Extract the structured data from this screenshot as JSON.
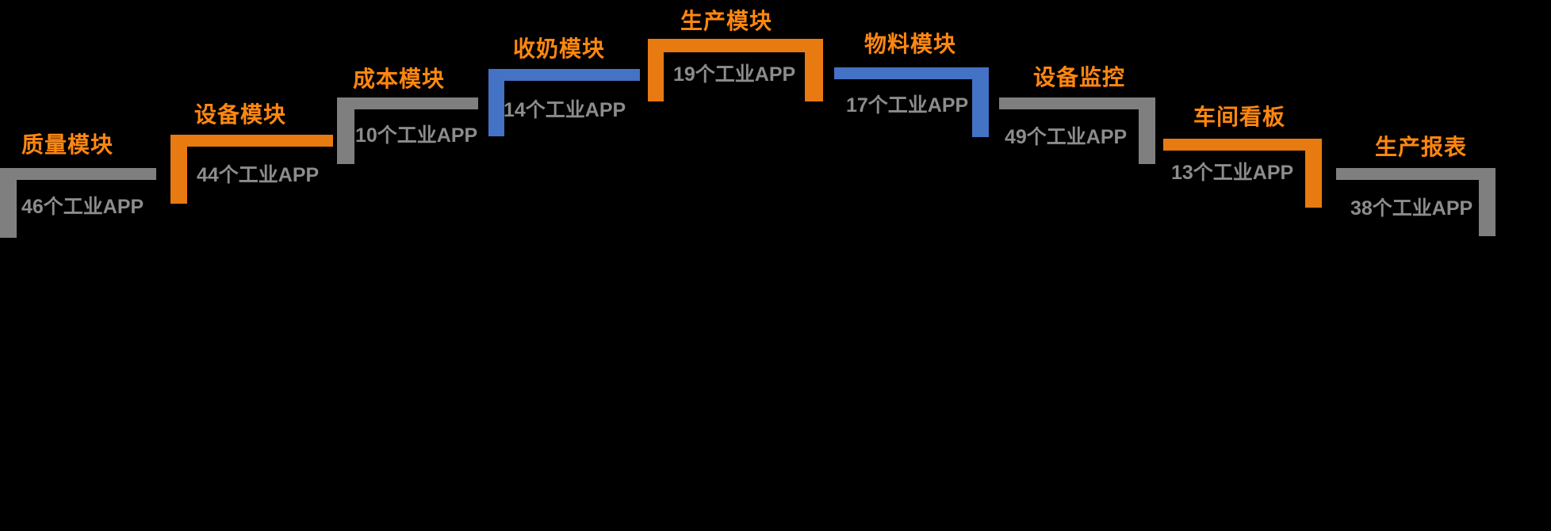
{
  "diagram": {
    "background": "#000000",
    "colors": {
      "step_orange": "#E87A12",
      "step_blue": "#4472C4",
      "step_gray": "#7F7F7F",
      "label_orange": "#FF8710",
      "count_gray": "#8C8C8C"
    },
    "steps": [
      {
        "label": "质量模块",
        "count": "46个工业APP",
        "shape_color": "gray",
        "arrow_color": "orange",
        "side": "ascending"
      },
      {
        "label": "设备模块",
        "count": "44个工业APP",
        "shape_color": "orange",
        "arrow_color": "gray",
        "side": "ascending"
      },
      {
        "label": "成本模块",
        "count": "10个工业APP",
        "shape_color": "gray",
        "arrow_color": "blue",
        "side": "ascending"
      },
      {
        "label": "收奶模块",
        "count": "14个工业APP",
        "shape_color": "blue",
        "arrow_color": "orange",
        "side": "ascending"
      },
      {
        "label": "生产模块",
        "count": "19个工业APP",
        "shape_color": "orange",
        "arrow_color": "",
        "side": "peak"
      },
      {
        "label": "物料模块",
        "count": "17个工业APP",
        "shape_color": "blue",
        "arrow_color": "orange",
        "side": "descending"
      },
      {
        "label": "设备监控",
        "count": "49个工业APP",
        "shape_color": "gray",
        "arrow_color": "blue",
        "side": "descending"
      },
      {
        "label": "车间看板",
        "count": "13个工业APP",
        "shape_color": "orange",
        "arrow_color": "gray",
        "side": "descending"
      },
      {
        "label": "生产报表",
        "count": "38个工业APP",
        "shape_color": "gray",
        "arrow_color": "orange",
        "side": "descending"
      }
    ]
  }
}
